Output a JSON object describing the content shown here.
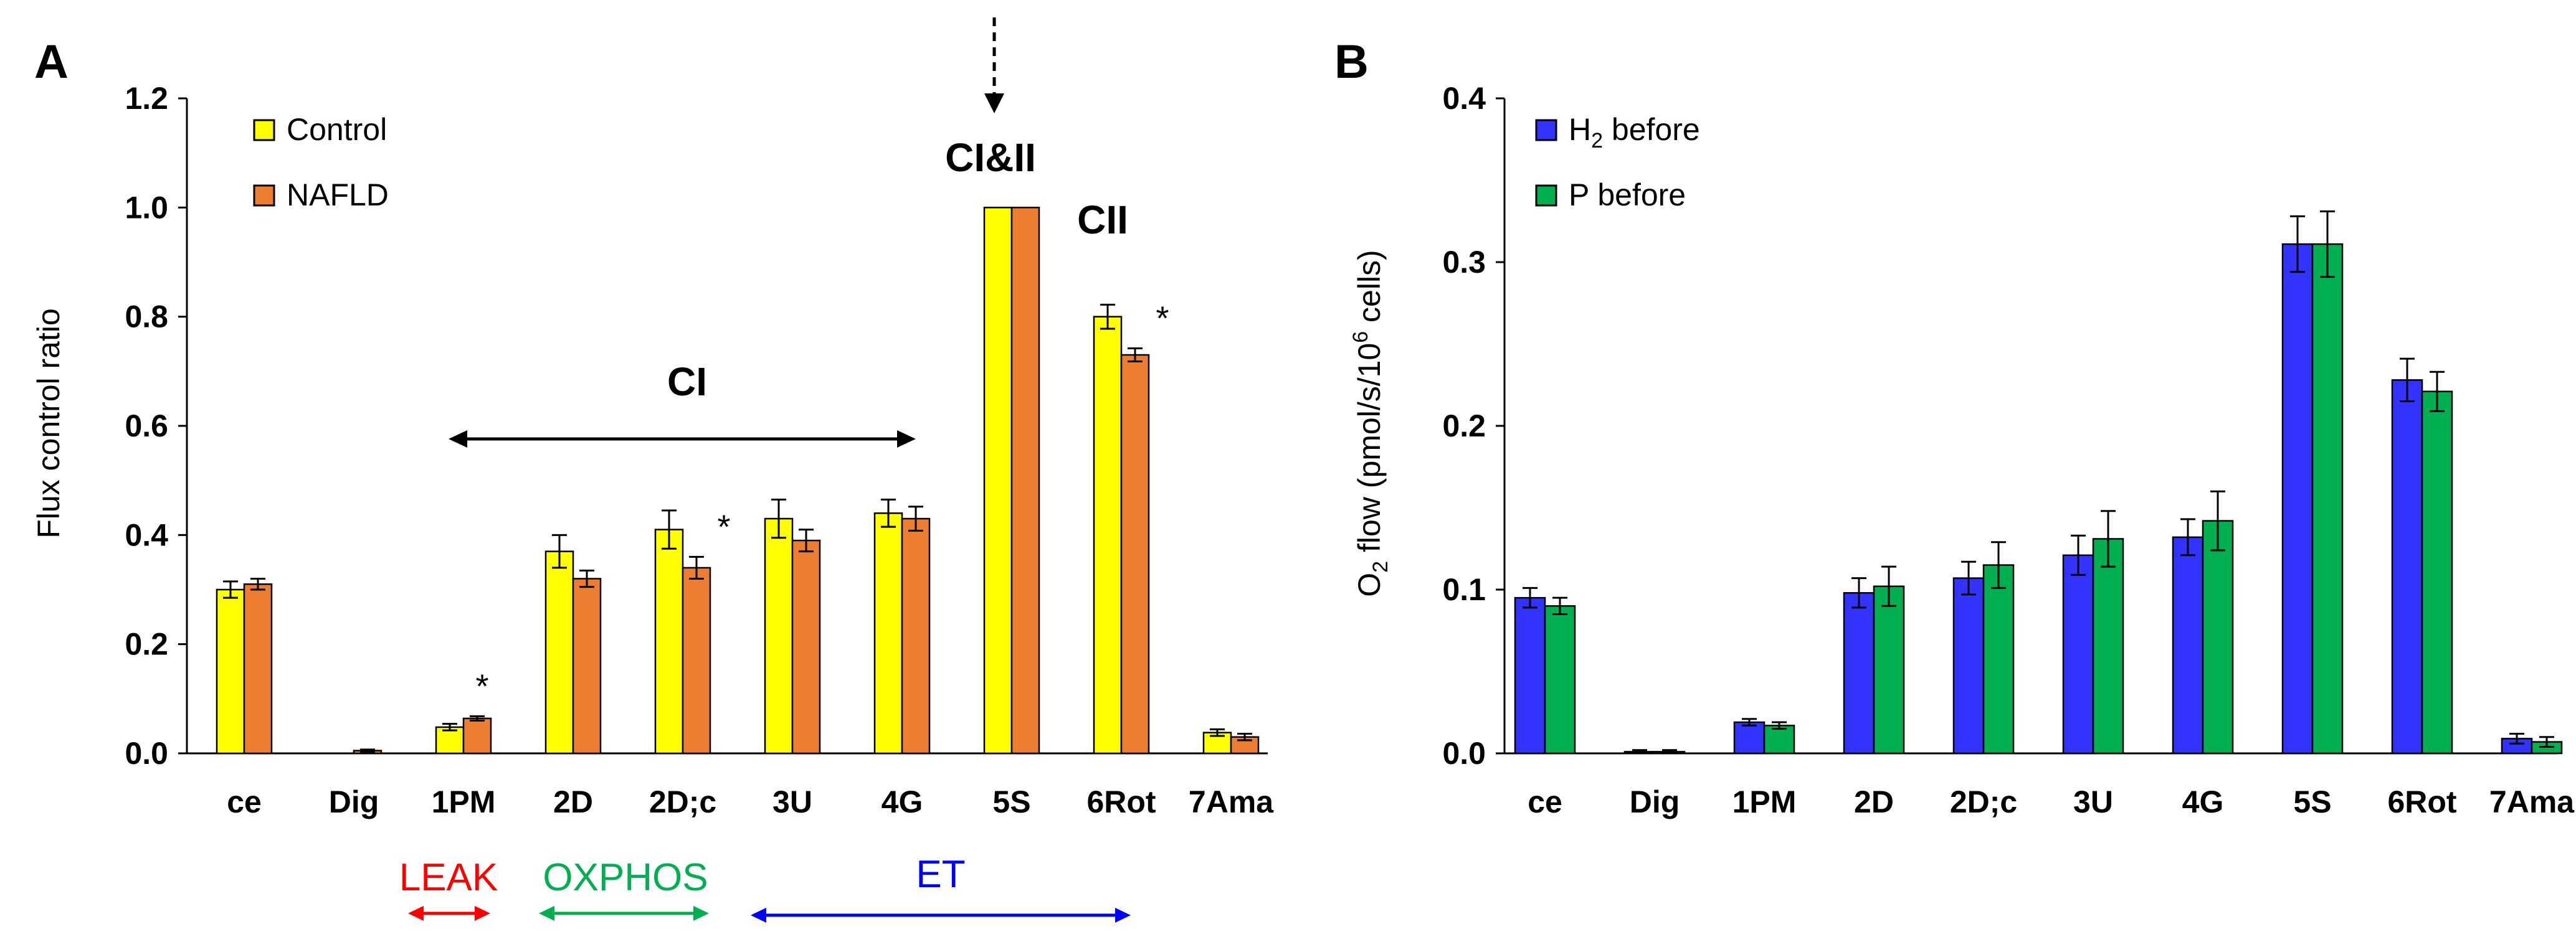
{
  "colors": {
    "control": "#FFFF00",
    "nafld": "#ED7D31",
    "h2": "#3333FF",
    "p": "#00B050",
    "leak": "#FF0000",
    "oxphos": "#00B050",
    "et": "#0000FF"
  },
  "chart_data": [
    {
      "panel": "A",
      "type": "bar",
      "ylabel": "Flux control ratio",
      "xlabel": "",
      "ylim": [
        0,
        1.2
      ],
      "yticks": [
        "0.0",
        "0.2",
        "0.4",
        "0.6",
        "0.8",
        "1.0",
        "1.2"
      ],
      "categories": [
        "ce",
        "Dig",
        "1PM",
        "2D",
        "2D;c",
        "3U",
        "4G",
        "5S",
        "6Rot",
        "7Ama"
      ],
      "series": [
        {
          "name": "Control",
          "values": [
            0.3,
            0,
            0.048,
            0.37,
            0.41,
            0.43,
            0.44,
            1.0,
            0.8,
            0.038
          ],
          "errors": [
            0.015,
            0,
            0.006,
            0.03,
            0.035,
            0.035,
            0.025,
            0,
            0.022,
            0.006
          ]
        },
        {
          "name": "NAFLD",
          "values": [
            0.31,
            0.005,
            0.064,
            0.32,
            0.34,
            0.39,
            0.43,
            1.0,
            0.73,
            0.03
          ],
          "errors": [
            0.01,
            0.002,
            0.004,
            0.015,
            0.02,
            0.02,
            0.022,
            0,
            0.012,
            0.006
          ]
        }
      ],
      "significance_marker": "*",
      "significant_categories": [
        "1PM",
        "2D;c",
        "6Rot"
      ],
      "annotations": {
        "ci": "CI",
        "cicii": "CI&II",
        "cii": "CII",
        "leak": "LEAK",
        "oxphos": "OXPHOS",
        "et": "ET"
      }
    },
    {
      "panel": "B",
      "type": "bar",
      "xlabel": "",
      "ylim": [
        0,
        0.4
      ],
      "yticks": [
        "0.0",
        "0.1",
        "0.2",
        "0.3",
        "0.4"
      ],
      "categories": [
        "ce",
        "Dig",
        "1PM",
        "2D",
        "2D;c",
        "3U",
        "4G",
        "5S",
        "6Rot",
        "7Ama"
      ],
      "series": [
        {
          "name": "H2 before",
          "values": [
            0.095,
            0.001,
            0.019,
            0.098,
            0.107,
            0.121,
            0.132,
            0.311,
            0.228,
            0.009
          ],
          "errors": [
            0.006,
            0.001,
            0.002,
            0.009,
            0.01,
            0.012,
            0.011,
            0.017,
            0.013,
            0.003
          ]
        },
        {
          "name": "P before",
          "values": [
            0.09,
            0.001,
            0.017,
            0.102,
            0.115,
            0.131,
            0.142,
            0.311,
            0.221,
            0.007
          ],
          "errors": [
            0.005,
            0.001,
            0.002,
            0.012,
            0.014,
            0.017,
            0.018,
            0.02,
            0.012,
            0.003
          ]
        }
      ]
    }
  ],
  "panelA": {
    "label": "A",
    "legend": [
      "Control",
      "NAFLD"
    ]
  },
  "panelB": {
    "label": "B",
    "legend_h2_main": "H",
    "legend_h2_sub": "2",
    "legend_h2_rest": " before",
    "legend_p": "P before",
    "ylabel_pre": "O",
    "ylabel_sub": "2",
    "ylabel_mid": " flow (pmol/s/10",
    "ylabel_sup": "6",
    "ylabel_post": " cells)"
  }
}
